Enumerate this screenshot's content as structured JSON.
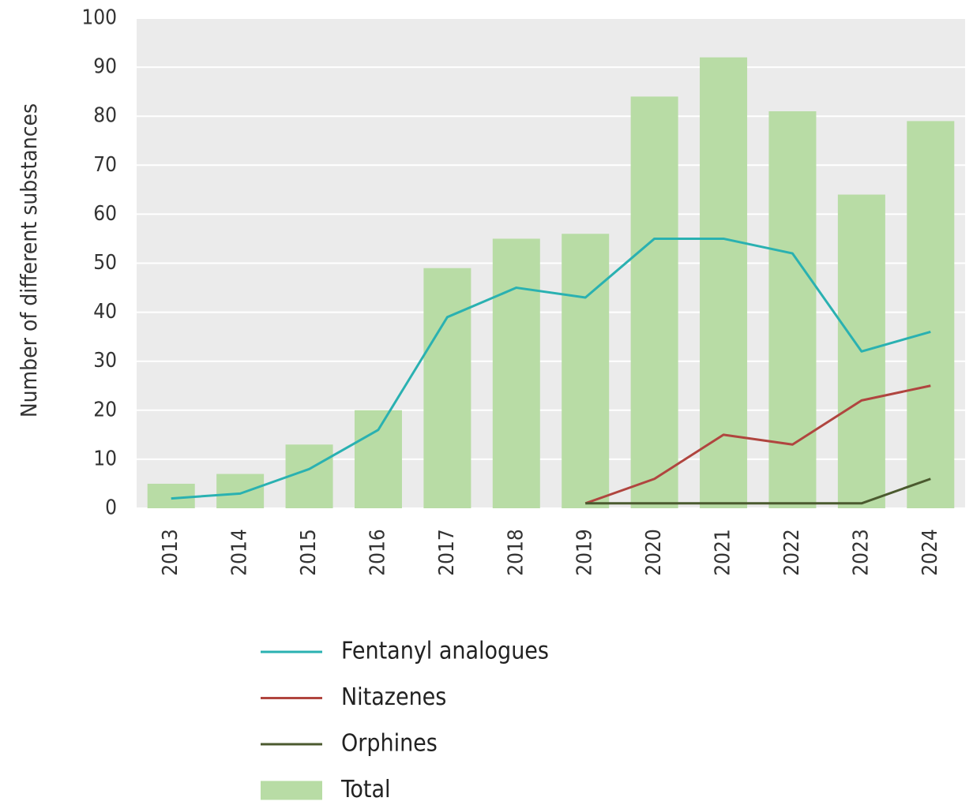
{
  "chart_data": {
    "type": "bar",
    "y_label": "Number of different substances",
    "categories": [
      "2013",
      "2014",
      "2015",
      "2016",
      "2017",
      "2018",
      "2019",
      "2020",
      "2021",
      "2022",
      "2023",
      "2024"
    ],
    "series": [
      {
        "name": "Fentanyl analogues",
        "type": "line",
        "color": "#2ab1b1",
        "values": [
          2,
          3,
          8,
          16,
          39,
          45,
          43,
          55,
          55,
          52,
          32,
          36
        ]
      },
      {
        "name": "Nitazenes",
        "type": "line",
        "color": "#b0453f",
        "values": [
          null,
          null,
          null,
          null,
          null,
          null,
          1,
          6,
          15,
          13,
          22,
          25
        ]
      },
      {
        "name": "Orphines",
        "type": "line",
        "color": "#4b5a2f",
        "values": [
          null,
          null,
          null,
          null,
          null,
          null,
          1,
          1,
          1,
          1,
          1,
          6
        ]
      },
      {
        "name": "Total",
        "type": "bar",
        "color": "#b8dca5",
        "values": [
          5,
          7,
          13,
          20,
          49,
          55,
          56,
          84,
          92,
          81,
          64,
          79
        ]
      }
    ],
    "ylim": [
      0,
      100
    ],
    "yticks": [
      0,
      10,
      20,
      30,
      40,
      50,
      60,
      70,
      80,
      90,
      100
    ],
    "grid": true
  }
}
